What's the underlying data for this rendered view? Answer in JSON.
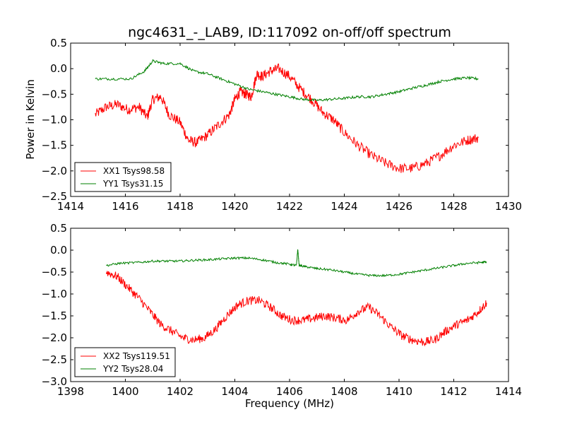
{
  "chart_data": [
    {
      "type": "line",
      "title": "ngc4631_-_LAB9, ID:117092 on-off/off spectrum",
      "xlabel": "",
      "ylabel": "Power in Kelvin",
      "xlim": [
        1414,
        1430
      ],
      "ylim": [
        -2.5,
        0.5
      ],
      "xticks": [
        1414,
        1416,
        1418,
        1420,
        1422,
        1424,
        1426,
        1428,
        1430
      ],
      "yticks": [
        0.5,
        0.0,
        -0.5,
        -1.0,
        -1.5,
        -2.0,
        -2.5
      ],
      "xtick_labels": [
        "1414",
        "1416",
        "1418",
        "1420",
        "1422",
        "1424",
        "1426",
        "1428",
        "1430"
      ],
      "ytick_labels": [
        "0.5",
        "0.0",
        "−0.5",
        "−1.0",
        "−1.5",
        "−2.0",
        "−2.5"
      ],
      "grid": false,
      "legend": "lower-left",
      "series": [
        {
          "name": "XX1 Tsys98.58",
          "color": "#ff0000",
          "x": [
            1414.9,
            1415.3,
            1415.7,
            1416.1,
            1416.5,
            1416.8,
            1417.0,
            1417.3,
            1417.6,
            1418.0,
            1418.3,
            1418.6,
            1419.0,
            1419.4,
            1419.8,
            1420.0,
            1420.2,
            1420.4,
            1420.6,
            1420.8,
            1421.0,
            1421.3,
            1421.6,
            1422.0,
            1422.4,
            1422.8,
            1423.2,
            1423.6,
            1424.0,
            1424.5,
            1425.0,
            1425.5,
            1426.0,
            1426.5,
            1427.0,
            1427.5,
            1428.0,
            1428.5,
            1428.9
          ],
          "y": [
            -0.9,
            -0.75,
            -0.7,
            -0.8,
            -0.75,
            -0.95,
            -0.6,
            -0.55,
            -0.9,
            -1.05,
            -1.4,
            -1.45,
            -1.3,
            -1.1,
            -0.9,
            -0.6,
            -0.45,
            -0.5,
            -0.55,
            -0.1,
            -0.15,
            -0.05,
            0.0,
            -0.15,
            -0.4,
            -0.6,
            -0.85,
            -1.0,
            -1.25,
            -1.5,
            -1.7,
            -1.85,
            -1.95,
            -1.95,
            -1.85,
            -1.7,
            -1.5,
            -1.4,
            -1.35
          ]
        },
        {
          "name": "YY1 Tsys31.15",
          "color": "#008000",
          "x": [
            1414.9,
            1415.5,
            1416.2,
            1416.7,
            1417.0,
            1417.4,
            1418.0,
            1418.5,
            1419.0,
            1419.5,
            1420.0,
            1420.5,
            1421.0,
            1421.5,
            1422.0,
            1422.5,
            1423.0,
            1423.5,
            1424.0,
            1424.5,
            1425.0,
            1425.5,
            1426.0,
            1426.5,
            1427.0,
            1427.5,
            1428.0,
            1428.5,
            1428.9
          ],
          "y": [
            -0.2,
            -0.2,
            -0.2,
            -0.05,
            0.15,
            0.1,
            0.1,
            -0.05,
            -0.1,
            -0.2,
            -0.3,
            -0.4,
            -0.45,
            -0.5,
            -0.55,
            -0.6,
            -0.62,
            -0.6,
            -0.58,
            -0.55,
            -0.55,
            -0.5,
            -0.45,
            -0.38,
            -0.32,
            -0.25,
            -0.2,
            -0.18,
            -0.2
          ]
        }
      ]
    },
    {
      "type": "line",
      "title": "",
      "xlabel": "Frequency (MHz)",
      "ylabel": "",
      "xlim": [
        1398,
        1414
      ],
      "ylim": [
        -3.0,
        0.5
      ],
      "xticks": [
        1398,
        1400,
        1402,
        1404,
        1406,
        1408,
        1410,
        1412,
        1414
      ],
      "yticks": [
        0.5,
        0.0,
        -0.5,
        -1.0,
        -1.5,
        -2.0,
        -2.5,
        -3.0
      ],
      "xtick_labels": [
        "1398",
        "1400",
        "1402",
        "1404",
        "1406",
        "1408",
        "1410",
        "1412",
        "1414"
      ],
      "ytick_labels": [
        "0.5",
        "0.0",
        "−0.5",
        "−1.0",
        "−1.5",
        "−2.0",
        "−2.5",
        "−3.0"
      ],
      "grid": false,
      "legend": "lower-left",
      "series": [
        {
          "name": "XX2 Tsys119.51",
          "color": "#ff0000",
          "x": [
            1399.3,
            1399.7,
            1400.1,
            1400.5,
            1400.9,
            1401.3,
            1401.7,
            1402.1,
            1402.5,
            1402.9,
            1403.3,
            1403.7,
            1404.1,
            1404.5,
            1404.9,
            1405.3,
            1405.7,
            1406.1,
            1406.5,
            1406.9,
            1407.3,
            1407.7,
            1408.1,
            1408.5,
            1408.9,
            1409.3,
            1409.7,
            1410.1,
            1410.5,
            1410.9,
            1411.3,
            1411.7,
            1412.1,
            1412.5,
            1412.9,
            1413.2
          ],
          "y": [
            -0.5,
            -0.6,
            -0.85,
            -1.1,
            -1.4,
            -1.7,
            -1.85,
            -2.0,
            -2.05,
            -2.0,
            -1.8,
            -1.5,
            -1.25,
            -1.15,
            -1.15,
            -1.3,
            -1.5,
            -1.6,
            -1.6,
            -1.55,
            -1.5,
            -1.55,
            -1.6,
            -1.4,
            -1.3,
            -1.5,
            -1.75,
            -1.95,
            -2.05,
            -2.1,
            -2.05,
            -1.85,
            -1.7,
            -1.6,
            -1.4,
            -1.2
          ]
        },
        {
          "name": "YY2 Tsys28.04",
          "color": "#008000",
          "x": [
            1399.3,
            1399.8,
            1400.5,
            1401.0,
            1401.5,
            1402.0,
            1402.5,
            1403.0,
            1403.5,
            1404.0,
            1404.5,
            1405.0,
            1405.5,
            1406.0,
            1406.25,
            1406.3,
            1406.35,
            1406.6,
            1407.0,
            1407.5,
            1408.0,
            1408.5,
            1409.0,
            1409.5,
            1410.0,
            1410.5,
            1411.0,
            1411.5,
            1412.0,
            1412.5,
            1413.0,
            1413.2
          ],
          "y": [
            -0.35,
            -0.3,
            -0.28,
            -0.25,
            -0.25,
            -0.25,
            -0.23,
            -0.22,
            -0.2,
            -0.18,
            -0.18,
            -0.22,
            -0.28,
            -0.32,
            -0.35,
            0.02,
            -0.35,
            -0.38,
            -0.42,
            -0.45,
            -0.5,
            -0.55,
            -0.58,
            -0.58,
            -0.55,
            -0.5,
            -0.45,
            -0.4,
            -0.35,
            -0.3,
            -0.28,
            -0.27
          ]
        }
      ]
    }
  ]
}
